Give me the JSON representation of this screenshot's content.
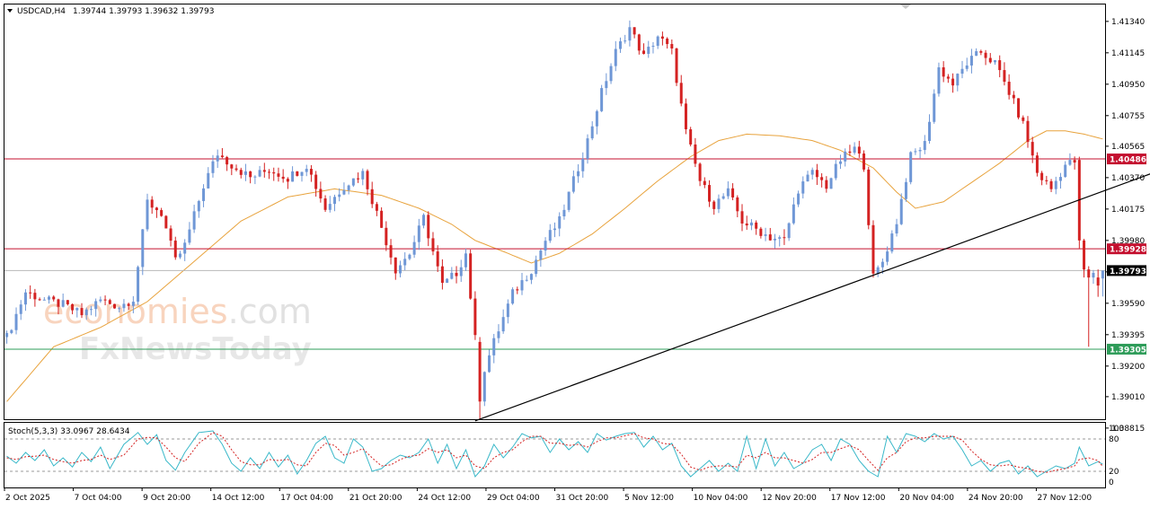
{
  "header": {
    "symbol": "USDCAD,H4",
    "ohlc": "1.39744 1.39793 1.39632 1.39793"
  },
  "watermark": {
    "brand_part1": "economies",
    "brand_part2": ".com",
    "brand_line2": "FxNewsToday"
  },
  "stoch": {
    "label": "Stoch(5,3,3) 33.0967 28.6434",
    "levels": [
      100,
      80,
      20,
      0
    ],
    "tick_labels": [
      "100",
      "80",
      "20",
      "0"
    ]
  },
  "colors": {
    "bull": "#6f97d6",
    "bear": "#d42222",
    "ma": "#e8a33d",
    "resistance": "#c4102f",
    "support": "#2e9c59",
    "current": "#000000",
    "trendline": "#000000",
    "stoch_main": "#39b8c9",
    "stoch_signal": "#d42222"
  },
  "chart_data": {
    "type": "candlestick",
    "price_range": [
      1.3887,
      1.41445
    ],
    "y_ticks": [
      "1.41340",
      "1.41145",
      "1.40950",
      "1.40755",
      "1.40565",
      "1.40370",
      "1.40175",
      "1.39980",
      "1.39785",
      "1.39590",
      "1.39395",
      "1.39200",
      "1.39010",
      "1.38815"
    ],
    "y_tick_values": [
      1.4134,
      1.41145,
      1.4095,
      1.40755,
      1.40565,
      1.4037,
      1.40175,
      1.3998,
      1.39785,
      1.3959,
      1.39395,
      1.392,
      1.3901,
      1.38815
    ],
    "x_labels": [
      "2 Oct 2025",
      "7 Oct 04:00",
      "9 Oct 20:00",
      "14 Oct 12:00",
      "17 Oct 04:00",
      "21 Oct 20:00",
      "24 Oct 12:00",
      "29 Oct 04:00",
      "31 Oct 20:00",
      "5 Nov 12:00",
      "10 Nov 04:00",
      "12 Nov 20:00",
      "17 Nov 12:00",
      "20 Nov 04:00",
      "24 Nov 20:00",
      "27 Nov 12:00"
    ],
    "horizontal_levels": [
      {
        "label": "1.40486",
        "value": 1.40486,
        "kind": "resistance"
      },
      {
        "label": "1.39928",
        "value": 1.39928,
        "kind": "resistance"
      },
      {
        "label": "1.39793",
        "value": 1.39793,
        "kind": "current"
      },
      {
        "label": "1.39305",
        "value": 1.39305,
        "kind": "support"
      }
    ],
    "trendline": {
      "from_index": 100,
      "from_price": 1.3886,
      "to_index": 257,
      "to_price": 1.4053
    },
    "close_path": [
      [
        0,
        1.3938
      ],
      [
        4,
        1.3966
      ],
      [
        8,
        1.3961
      ],
      [
        12,
        1.3958
      ],
      [
        16,
        1.3952
      ],
      [
        20,
        1.3961
      ],
      [
        24,
        1.3957
      ],
      [
        27,
        1.3962
      ],
      [
        30,
        1.4022
      ],
      [
        33,
        1.4015
      ],
      [
        36,
        1.3985
      ],
      [
        38,
        1.3995
      ],
      [
        42,
        1.4032
      ],
      [
        45,
        1.4052
      ],
      [
        48,
        1.4045
      ],
      [
        52,
        1.4037
      ],
      [
        56,
        1.4042
      ],
      [
        60,
        1.4037
      ],
      [
        64,
        1.4045
      ],
      [
        68,
        1.4018
      ],
      [
        72,
        1.4032
      ],
      [
        76,
        1.404
      ],
      [
        79,
        1.4015
      ],
      [
        83,
        1.398
      ],
      [
        86,
        1.399
      ],
      [
        89,
        1.4012
      ],
      [
        93,
        1.397
      ],
      [
        96,
        1.3978
      ],
      [
        98,
        1.399
      ],
      [
        101,
        1.391
      ],
      [
        104,
        1.3935
      ],
      [
        108,
        1.3965
      ],
      [
        112,
        1.398
      ],
      [
        115,
        1.3998
      ],
      [
        118,
        1.401
      ],
      [
        121,
        1.4035
      ],
      [
        124,
        1.406
      ],
      [
        127,
        1.409
      ],
      [
        130,
        1.4115
      ],
      [
        133,
        1.413
      ],
      [
        136,
        1.4112
      ],
      [
        139,
        1.4125
      ],
      [
        142,
        1.4115
      ],
      [
        145,
        1.4065
      ],
      [
        148,
        1.4035
      ],
      [
        151,
        1.402
      ],
      [
        154,
        1.4028
      ],
      [
        157,
        1.401
      ],
      [
        160,
        1.4005
      ],
      [
        163,
        1.4
      ],
      [
        166,
        1.3998
      ],
      [
        169,
        1.403
      ],
      [
        172,
        1.404
      ],
      [
        175,
        1.4032
      ],
      [
        178,
        1.4048
      ],
      [
        181,
        1.4055
      ],
      [
        183,
        1.4045
      ],
      [
        185,
        1.3975
      ],
      [
        187,
        1.3985
      ],
      [
        190,
        1.401
      ],
      [
        193,
        1.405
      ],
      [
        196,
        1.4058
      ],
      [
        199,
        1.4105
      ],
      [
        202,
        1.4095
      ],
      [
        205,
        1.4108
      ],
      [
        208,
        1.4115
      ],
      [
        211,
        1.4108
      ],
      [
        214,
        1.409
      ],
      [
        217,
        1.407
      ],
      [
        220,
        1.404
      ],
      [
        223,
        1.403
      ],
      [
        226,
        1.4045
      ],
      [
        229,
        1.4048
      ],
      [
        231,
        1.3985
      ],
      [
        233,
        1.3972
      ],
      [
        234,
        1.3979
      ]
    ],
    "ma_path": [
      [
        0,
        1.3898
      ],
      [
        10,
        1.3932
      ],
      [
        20,
        1.3944
      ],
      [
        30,
        1.396
      ],
      [
        40,
        1.3985
      ],
      [
        50,
        1.401
      ],
      [
        60,
        1.4025
      ],
      [
        70,
        1.403
      ],
      [
        80,
        1.4026
      ],
      [
        88,
        1.4018
      ],
      [
        95,
        1.4008
      ],
      [
        100,
        1.3998
      ],
      [
        107,
        1.399
      ],
      [
        112,
        1.3984
      ],
      [
        118,
        1.399
      ],
      [
        125,
        1.4002
      ],
      [
        132,
        1.4018
      ],
      [
        139,
        1.4035
      ],
      [
        146,
        1.405
      ],
      [
        152,
        1.406
      ],
      [
        158,
        1.4064
      ],
      [
        165,
        1.4063
      ],
      [
        172,
        1.406
      ],
      [
        178,
        1.4054
      ],
      [
        185,
        1.4043
      ],
      [
        190,
        1.4028
      ],
      [
        194,
        1.4018
      ],
      [
        200,
        1.4022
      ],
      [
        206,
        1.4034
      ],
      [
        212,
        1.4046
      ],
      [
        218,
        1.406
      ],
      [
        222,
        1.4066
      ],
      [
        226,
        1.4066
      ],
      [
        230,
        1.4064
      ],
      [
        234,
        1.4061
      ]
    ],
    "stoch_main": [
      [
        0,
        48
      ],
      [
        2,
        35
      ],
      [
        4,
        55
      ],
      [
        6,
        40
      ],
      [
        8,
        60
      ],
      [
        10,
        30
      ],
      [
        12,
        45
      ],
      [
        14,
        28
      ],
      [
        16,
        55
      ],
      [
        18,
        38
      ],
      [
        20,
        65
      ],
      [
        22,
        25
      ],
      [
        25,
        70
      ],
      [
        28,
        92
      ],
      [
        30,
        70
      ],
      [
        32,
        88
      ],
      [
        34,
        40
      ],
      [
        36,
        22
      ],
      [
        38,
        55
      ],
      [
        41,
        92
      ],
      [
        44,
        95
      ],
      [
        46,
        70
      ],
      [
        48,
        35
      ],
      [
        50,
        20
      ],
      [
        52,
        45
      ],
      [
        54,
        25
      ],
      [
        56,
        55
      ],
      [
        58,
        28
      ],
      [
        60,
        50
      ],
      [
        62,
        15
      ],
      [
        64,
        40
      ],
      [
        66,
        72
      ],
      [
        68,
        85
      ],
      [
        70,
        45
      ],
      [
        72,
        35
      ],
      [
        74,
        80
      ],
      [
        76,
        65
      ],
      [
        78,
        20
      ],
      [
        80,
        25
      ],
      [
        82,
        40
      ],
      [
        84,
        50
      ],
      [
        86,
        45
      ],
      [
        88,
        55
      ],
      [
        90,
        80
      ],
      [
        92,
        35
      ],
      [
        94,
        70
      ],
      [
        96,
        25
      ],
      [
        98,
        60
      ],
      [
        100,
        10
      ],
      [
        102,
        30
      ],
      [
        104,
        70
      ],
      [
        106,
        45
      ],
      [
        108,
        65
      ],
      [
        110,
        90
      ],
      [
        112,
        82
      ],
      [
        114,
        85
      ],
      [
        116,
        55
      ],
      [
        118,
        80
      ],
      [
        120,
        60
      ],
      [
        122,
        75
      ],
      [
        124,
        55
      ],
      [
        126,
        90
      ],
      [
        128,
        78
      ],
      [
        130,
        85
      ],
      [
        132,
        90
      ],
      [
        134,
        92
      ],
      [
        136,
        65
      ],
      [
        138,
        85
      ],
      [
        140,
        60
      ],
      [
        142,
        72
      ],
      [
        144,
        30
      ],
      [
        146,
        10
      ],
      [
        148,
        25
      ],
      [
        150,
        40
      ],
      [
        152,
        20
      ],
      [
        154,
        35
      ],
      [
        156,
        20
      ],
      [
        158,
        85
      ],
      [
        160,
        25
      ],
      [
        162,
        80
      ],
      [
        164,
        30
      ],
      [
        166,
        55
      ],
      [
        168,
        25
      ],
      [
        170,
        35
      ],
      [
        172,
        60
      ],
      [
        174,
        70
      ],
      [
        176,
        40
      ],
      [
        178,
        80
      ],
      [
        180,
        70
      ],
      [
        182,
        40
      ],
      [
        184,
        20
      ],
      [
        186,
        10
      ],
      [
        188,
        85
      ],
      [
        190,
        55
      ],
      [
        192,
        90
      ],
      [
        194,
        85
      ],
      [
        196,
        75
      ],
      [
        198,
        90
      ],
      [
        200,
        80
      ],
      [
        202,
        85
      ],
      [
        204,
        60
      ],
      [
        206,
        30
      ],
      [
        208,
        40
      ],
      [
        210,
        20
      ],
      [
        212,
        35
      ],
      [
        214,
        40
      ],
      [
        216,
        15
      ],
      [
        218,
        30
      ],
      [
        220,
        10
      ],
      [
        222,
        20
      ],
      [
        224,
        30
      ],
      [
        226,
        25
      ],
      [
        228,
        35
      ],
      [
        229,
        65
      ],
      [
        231,
        30
      ],
      [
        233,
        38
      ],
      [
        234,
        33
      ]
    ],
    "stoch_signal": [
      [
        0,
        45
      ],
      [
        2,
        42
      ],
      [
        4,
        47
      ],
      [
        6,
        48
      ],
      [
        8,
        50
      ],
      [
        10,
        42
      ],
      [
        12,
        38
      ],
      [
        14,
        35
      ],
      [
        16,
        40
      ],
      [
        18,
        42
      ],
      [
        20,
        50
      ],
      [
        22,
        42
      ],
      [
        25,
        50
      ],
      [
        28,
        80
      ],
      [
        30,
        83
      ],
      [
        32,
        82
      ],
      [
        34,
        65
      ],
      [
        36,
        45
      ],
      [
        38,
        38
      ],
      [
        41,
        72
      ],
      [
        44,
        92
      ],
      [
        46,
        85
      ],
      [
        48,
        60
      ],
      [
        50,
        38
      ],
      [
        52,
        32
      ],
      [
        54,
        32
      ],
      [
        56,
        42
      ],
      [
        58,
        40
      ],
      [
        60,
        42
      ],
      [
        62,
        32
      ],
      [
        64,
        30
      ],
      [
        66,
        55
      ],
      [
        68,
        72
      ],
      [
        70,
        68
      ],
      [
        72,
        50
      ],
      [
        74,
        55
      ],
      [
        76,
        62
      ],
      [
        78,
        45
      ],
      [
        80,
        30
      ],
      [
        82,
        32
      ],
      [
        84,
        42
      ],
      [
        86,
        48
      ],
      [
        88,
        50
      ],
      [
        90,
        62
      ],
      [
        92,
        55
      ],
      [
        94,
        60
      ],
      [
        96,
        45
      ],
      [
        98,
        50
      ],
      [
        100,
        30
      ],
      [
        102,
        25
      ],
      [
        104,
        45
      ],
      [
        106,
        55
      ],
      [
        108,
        60
      ],
      [
        110,
        75
      ],
      [
        112,
        85
      ],
      [
        114,
        85
      ],
      [
        116,
        72
      ],
      [
        118,
        72
      ],
      [
        120,
        68
      ],
      [
        122,
        70
      ],
      [
        124,
        65
      ],
      [
        126,
        75
      ],
      [
        128,
        82
      ],
      [
        130,
        82
      ],
      [
        132,
        86
      ],
      [
        134,
        90
      ],
      [
        136,
        82
      ],
      [
        138,
        80
      ],
      [
        140,
        72
      ],
      [
        142,
        70
      ],
      [
        144,
        52
      ],
      [
        146,
        28
      ],
      [
        148,
        22
      ],
      [
        150,
        28
      ],
      [
        152,
        30
      ],
      [
        154,
        30
      ],
      [
        156,
        28
      ],
      [
        158,
        50
      ],
      [
        160,
        45
      ],
      [
        162,
        55
      ],
      [
        164,
        45
      ],
      [
        166,
        45
      ],
      [
        168,
        40
      ],
      [
        170,
        35
      ],
      [
        172,
        42
      ],
      [
        174,
        55
      ],
      [
        176,
        55
      ],
      [
        178,
        62
      ],
      [
        180,
        68
      ],
      [
        182,
        60
      ],
      [
        184,
        40
      ],
      [
        186,
        22
      ],
      [
        188,
        45
      ],
      [
        190,
        55
      ],
      [
        192,
        75
      ],
      [
        194,
        82
      ],
      [
        196,
        82
      ],
      [
        198,
        85
      ],
      [
        200,
        85
      ],
      [
        202,
        85
      ],
      [
        204,
        78
      ],
      [
        206,
        58
      ],
      [
        208,
        42
      ],
      [
        210,
        32
      ],
      [
        212,
        30
      ],
      [
        214,
        32
      ],
      [
        216,
        28
      ],
      [
        218,
        25
      ],
      [
        220,
        20
      ],
      [
        222,
        18
      ],
      [
        224,
        22
      ],
      [
        226,
        25
      ],
      [
        228,
        30
      ],
      [
        229,
        42
      ],
      [
        231,
        45
      ],
      [
        233,
        40
      ],
      [
        234,
        28.6
      ]
    ],
    "candles": [
      {
        "i": 101,
        "open": 1.3935,
        "high": 1.3938,
        "low": 1.3887,
        "close": 1.3898
      },
      {
        "i": 229,
        "open": 1.4048,
        "high": 1.405,
        "low": 1.3993,
        "close": 1.3998
      },
      {
        "i": 230,
        "open": 1.3998,
        "high": 1.3999,
        "low": 1.3975,
        "close": 1.398
      },
      {
        "i": 231,
        "open": 1.398,
        "high": 1.3982,
        "low": 1.3932,
        "close": 1.3975
      },
      {
        "i": 233,
        "open": 1.3975,
        "high": 1.398,
        "low": 1.3963,
        "close": 1.397
      },
      {
        "i": 234,
        "open": 1.39744,
        "high": 1.39793,
        "low": 1.39632,
        "close": 1.39793
      }
    ]
  }
}
